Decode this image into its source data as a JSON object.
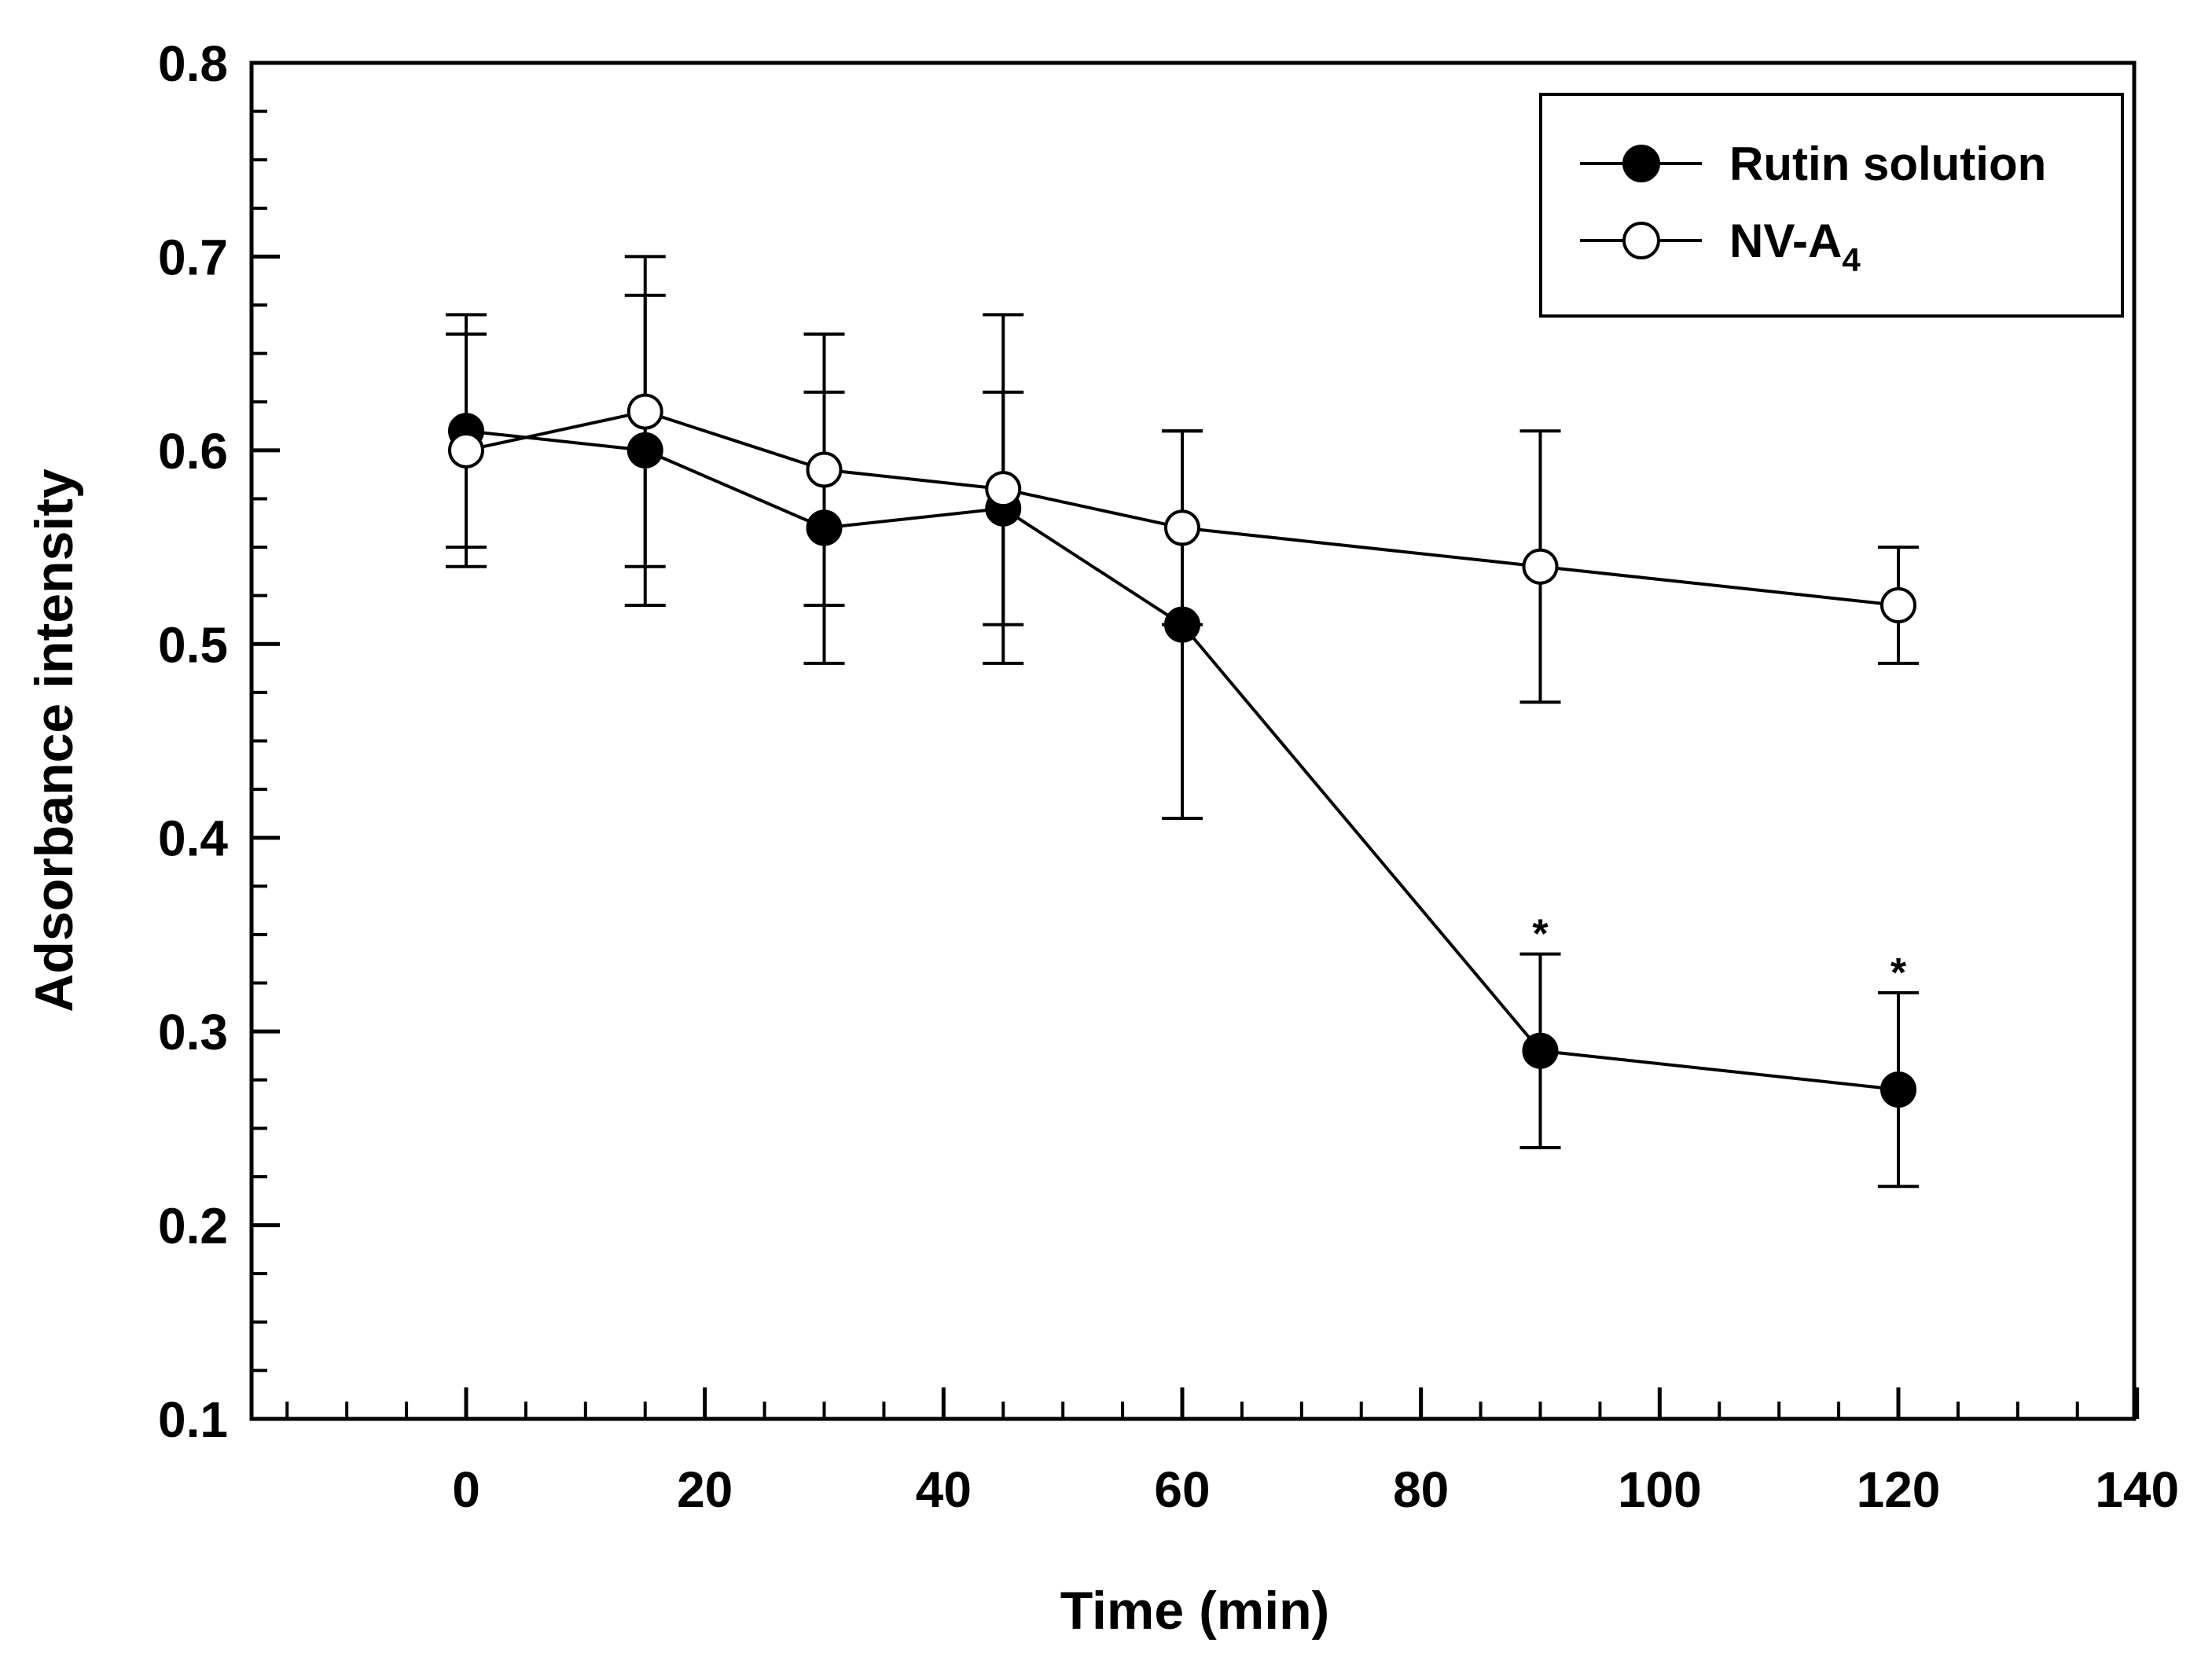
{
  "chart_data": {
    "type": "line",
    "title": "",
    "xlabel": "Time (min)",
    "ylabel": "Adsorbance intensity",
    "xlim": [
      -20,
      140
    ],
    "ylim": [
      0.1,
      0.8
    ],
    "xticks": [
      0,
      20,
      40,
      60,
      80,
      100,
      120,
      140
    ],
    "yticks": [
      0.1,
      0.2,
      0.3,
      0.4,
      0.5,
      0.6,
      0.7,
      0.8
    ],
    "xtick_labels": [
      "0",
      "20",
      "40",
      "60",
      "80",
      "100",
      "120",
      "140"
    ],
    "ytick_labels": [
      "0.1",
      "0.2",
      "0.3",
      "0.4",
      "0.5",
      "0.6",
      "0.7",
      "0.8"
    ],
    "grid": false,
    "legend_position": "top-right",
    "series": [
      {
        "name": "Rutin solution",
        "marker": "filled-circle",
        "x": [
          0,
          15,
          30,
          45,
          60,
          90,
          120
        ],
        "y": [
          0.61,
          0.6,
          0.56,
          0.57,
          0.51,
          0.29,
          0.27
        ],
        "err": [
          0.06,
          0.08,
          0.07,
          0.06,
          0.1,
          0.05,
          0.05
        ]
      },
      {
        "name": "NV-A",
        "name_subscript": "4",
        "marker": "open-circle",
        "x": [
          0,
          15,
          30,
          45,
          60,
          90,
          120
        ],
        "y": [
          0.6,
          0.62,
          0.59,
          0.58,
          0.56,
          0.54,
          0.52
        ],
        "err": [
          0.06,
          0.08,
          0.07,
          0.09,
          0.05,
          0.07,
          0.03
        ]
      }
    ],
    "annotations": [
      {
        "text": "*",
        "x": 90,
        "y": 0.34
      },
      {
        "text": "*",
        "x": 120,
        "y": 0.32
      }
    ]
  }
}
